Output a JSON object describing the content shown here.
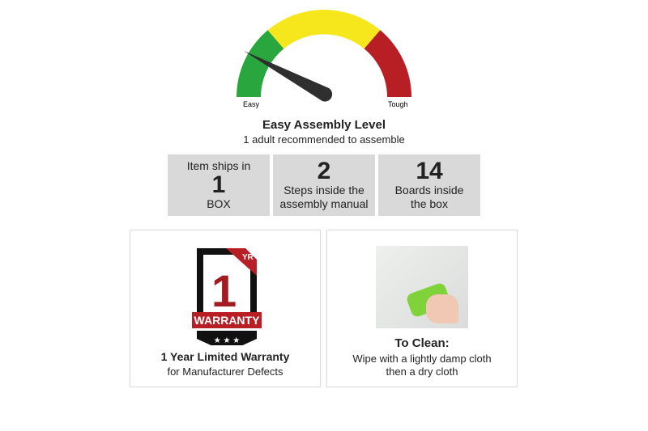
{
  "gauge": {
    "min_label": "Easy",
    "max_label": "Tough",
    "level": "easy",
    "colors": {
      "green": "#2aa63f",
      "yellow": "#f5e71c",
      "red": "#b81f25",
      "needle": "#2f2f2f"
    }
  },
  "assembly": {
    "title": "Easy Assembly Level",
    "subtitle": "1 adult recommended to assemble"
  },
  "stats": [
    {
      "top": "Item ships in",
      "value": "1",
      "bottom": "BOX"
    },
    {
      "value": "2",
      "bottom": "Steps inside the assembly manual"
    },
    {
      "value": "14",
      "bottom": "Boards inside the box"
    }
  ],
  "warranty": {
    "badge_number": "1",
    "badge_unit": "YR",
    "badge_text": "WARRANTY",
    "title": "1 Year Limited Warranty",
    "subtitle": "for Manufacturer Defects"
  },
  "clean": {
    "title": "To Clean:",
    "line1": "Wipe with a lightly damp cloth",
    "line2": "then a dry cloth"
  }
}
